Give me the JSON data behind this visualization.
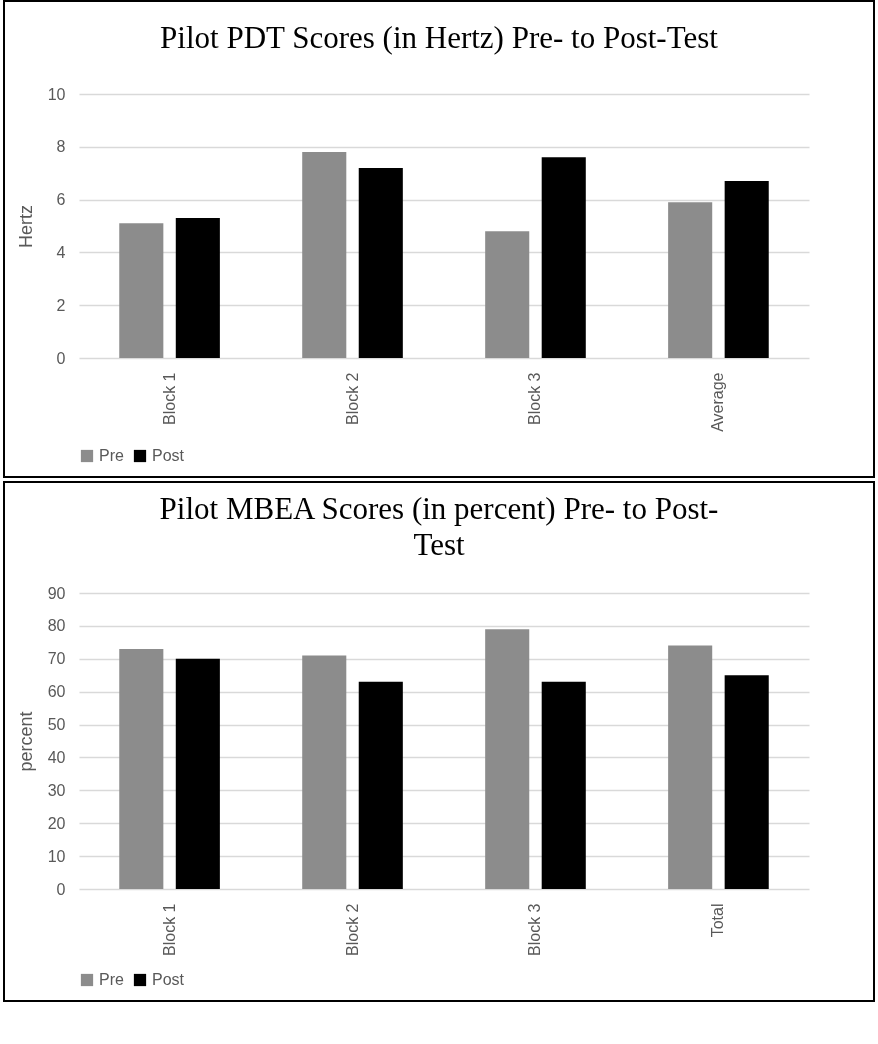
{
  "chart_data": [
    {
      "type": "bar",
      "title": "Pilot PDT Scores (in Hertz) Pre- to Post-Test",
      "ylabel": "Hertz",
      "categories": [
        "Block 1",
        "Block 2",
        "Block 3",
        "Average"
      ],
      "series": [
        {
          "name": "Pre",
          "color": "#8c8c8c",
          "values": [
            5.1,
            7.8,
            4.8,
            5.9
          ]
        },
        {
          "name": "Post",
          "color": "#000000",
          "values": [
            5.3,
            7.2,
            7.6,
            6.7
          ]
        }
      ],
      "ylim": [
        0,
        10
      ],
      "yticks": [
        0,
        2,
        4,
        6,
        8,
        10
      ],
      "grid": "y",
      "legend": "bottom"
    },
    {
      "type": "bar",
      "title": "Pilot MBEA Scores (in percent) Pre- to Post-Test",
      "ylabel": "percent",
      "categories": [
        "Block 1",
        "Block 2",
        "Block 3",
        "Total"
      ],
      "series": [
        {
          "name": "Pre",
          "color": "#8c8c8c",
          "values": [
            73,
            71,
            79,
            74
          ]
        },
        {
          "name": "Post",
          "color": "#000000",
          "values": [
            70,
            63,
            63,
            65
          ]
        }
      ],
      "ylim": [
        0,
        90
      ],
      "yticks": [
        0,
        10,
        20,
        30,
        40,
        50,
        60,
        70,
        80,
        90
      ],
      "grid": "y",
      "legend": "bottom"
    }
  ]
}
